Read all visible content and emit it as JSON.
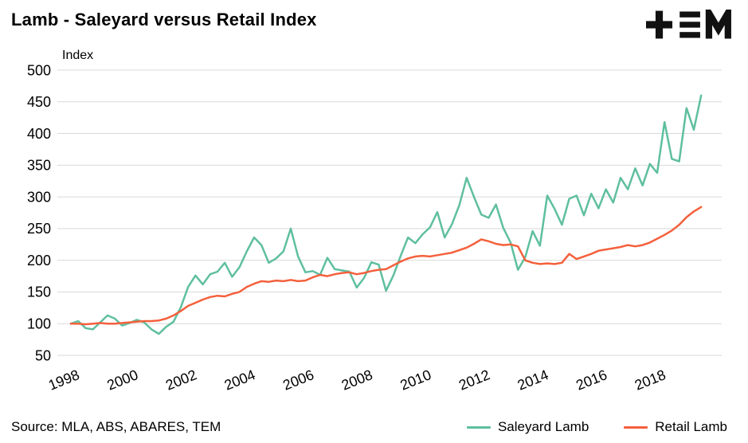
{
  "title": "Lamb - Saleyard versus Retail Index",
  "logo": "TEM",
  "source": "Source: MLA, ABS, ABARES, TEM",
  "colors": {
    "saleyard": "#5fbf9f",
    "retail": "#f4603c",
    "grid": "#d9d9d9",
    "text": "#000000",
    "background": "#ffffff"
  },
  "legend": [
    {
      "label": "Saleyard Lamb",
      "color": "#5fbf9f"
    },
    {
      "label": "Retail Lamb",
      "color": "#f4603c"
    }
  ],
  "chart_data": {
    "type": "line",
    "title": "Lamb - Saleyard versus Retail Index",
    "xlabel": "",
    "ylabel": "Index",
    "ylim": [
      50,
      500
    ],
    "ytick_interval": 50,
    "xticks": [
      1998,
      2000,
      2002,
      2004,
      2006,
      2008,
      2010,
      2012,
      2014,
      2016,
      2018
    ],
    "grid": "horizontal",
    "legend_position": "bottom-right",
    "x": [
      1998,
      1998.25,
      1998.5,
      1998.75,
      1999,
      1999.25,
      1999.5,
      1999.75,
      2000,
      2000.25,
      2000.5,
      2000.75,
      2001,
      2001.25,
      2001.5,
      2001.75,
      2002,
      2002.25,
      2002.5,
      2002.75,
      2003,
      2003.25,
      2003.5,
      2003.75,
      2004,
      2004.25,
      2004.5,
      2004.75,
      2005,
      2005.25,
      2005.5,
      2005.75,
      2006,
      2006.25,
      2006.5,
      2006.75,
      2007,
      2007.25,
      2007.5,
      2007.75,
      2008,
      2008.25,
      2008.5,
      2008.75,
      2009,
      2009.25,
      2009.5,
      2009.75,
      2010,
      2010.25,
      2010.5,
      2010.75,
      2011,
      2011.25,
      2011.5,
      2011.75,
      2012,
      2012.25,
      2012.5,
      2012.75,
      2013,
      2013.25,
      2013.5,
      2013.75,
      2014,
      2014.25,
      2014.5,
      2014.75,
      2015,
      2015.25,
      2015.5,
      2015.75,
      2016,
      2016.25,
      2016.5,
      2016.75,
      2017,
      2017.25,
      2017.5,
      2017.75,
      2018,
      2018.25,
      2018.5,
      2018.75,
      2019,
      2019.25,
      2019.5
    ],
    "series": [
      {
        "name": "Saleyard Lamb",
        "color": "#5fbf9f",
        "values": [
          100,
          104,
          93,
          91,
          102,
          113,
          108,
          97,
          101,
          106,
          102,
          91,
          84,
          95,
          103,
          126,
          158,
          176,
          162,
          178,
          182,
          196,
          174,
          189,
          214,
          236,
          224,
          196,
          203,
          214,
          250,
          206,
          181,
          183,
          177,
          204,
          186,
          184,
          182,
          157,
          172,
          197,
          193,
          152,
          176,
          207,
          236,
          227,
          241,
          252,
          276,
          236,
          257,
          287,
          330,
          300,
          272,
          267,
          288,
          251,
          228,
          185,
          205,
          246,
          223,
          302,
          281,
          256,
          297,
          302,
          271,
          305,
          282,
          312,
          291,
          330,
          312,
          345,
          318,
          352,
          338,
          418,
          360,
          356,
          440,
          406,
          460
        ]
      },
      {
        "name": "Retail Lamb",
        "color": "#f4603c",
        "values": [
          100,
          100,
          99,
          100,
          101,
          100,
          100,
          101,
          102,
          103,
          104,
          104,
          105,
          108,
          113,
          120,
          128,
          133,
          138,
          142,
          144,
          143,
          147,
          150,
          158,
          163,
          167,
          166,
          168,
          167,
          169,
          167,
          168,
          173,
          177,
          175,
          178,
          180,
          181,
          178,
          180,
          183,
          185,
          186,
          192,
          198,
          203,
          206,
          207,
          206,
          208,
          210,
          212,
          216,
          220,
          226,
          233,
          230,
          226,
          224,
          225,
          222,
          200,
          196,
          194,
          195,
          194,
          196,
          210,
          202,
          206,
          210,
          215,
          217,
          219,
          221,
          224,
          222,
          224,
          228,
          234,
          240,
          247,
          256,
          268,
          277,
          284
        ]
      }
    ]
  }
}
